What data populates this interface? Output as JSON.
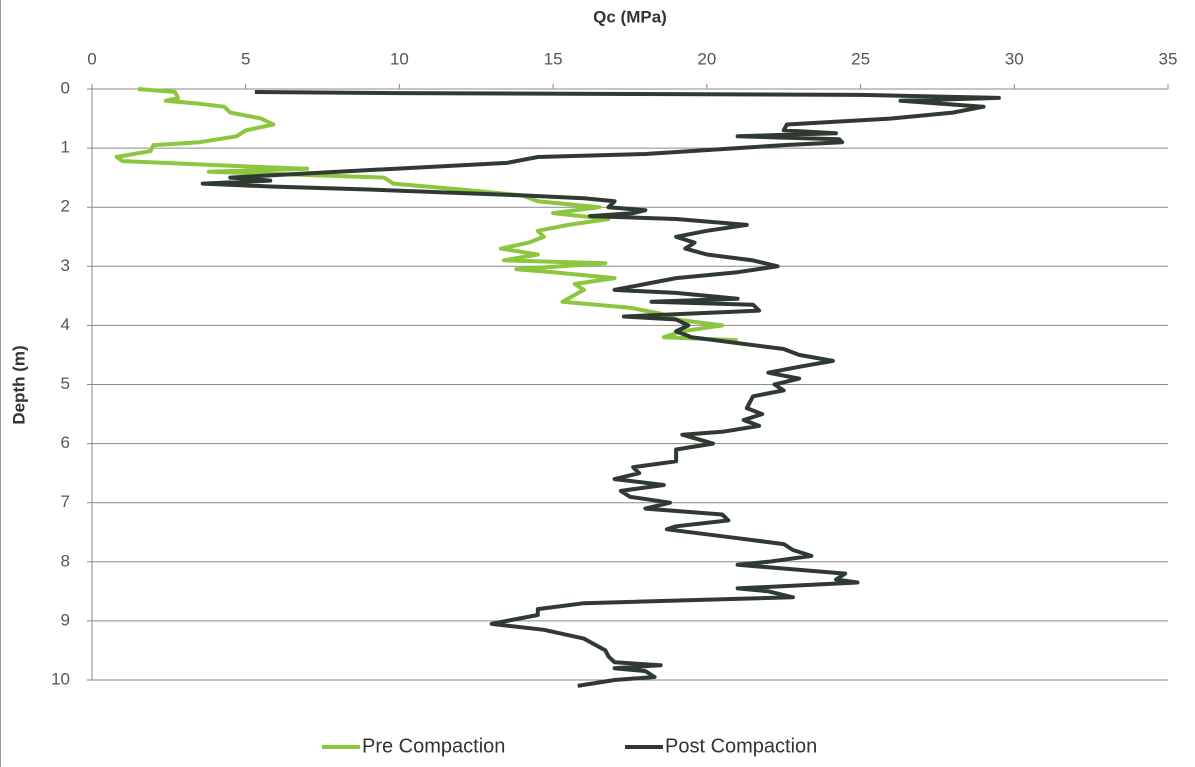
{
  "chart_data": {
    "type": "line",
    "xlabel": "Qc (MPa)",
    "ylabel": "Depth (m)",
    "xlim": [
      0,
      35
    ],
    "xticks": [
      0,
      5,
      10,
      15,
      20,
      25,
      30,
      35
    ],
    "ylim": [
      0,
      10
    ],
    "yticks": [
      0,
      1,
      2,
      3,
      4,
      5,
      6,
      7,
      8,
      9,
      10
    ],
    "y_inverted": true,
    "grid": true,
    "legend": "bottom",
    "series": [
      {
        "name": "Pre Compaction",
        "color": "#8cc63e",
        "x": [
          1.5,
          2.7,
          2.8,
          2.4,
          3.5,
          4.3,
          4.5,
          5.5,
          5.9,
          5.0,
          4.7,
          3.5,
          2.0,
          1.9,
          0.8,
          1.0,
          4.5,
          7.0,
          3.8,
          9.5,
          9.8,
          12.0,
          14.0,
          14.5,
          16.5,
          15.0,
          16.8,
          15.5,
          14.5,
          14.7,
          14.2,
          13.3,
          14.5,
          13.4,
          16.7,
          13.8,
          15.0,
          17.0,
          15.7,
          16.0,
          15.3,
          17.5,
          18.5,
          19.0,
          20.5,
          19.2,
          18.6,
          21.0
        ],
        "y": [
          0,
          0.05,
          0.15,
          0.2,
          0.25,
          0.3,
          0.4,
          0.5,
          0.6,
          0.7,
          0.8,
          0.9,
          0.95,
          1.05,
          1.15,
          1.22,
          1.3,
          1.35,
          1.4,
          1.5,
          1.6,
          1.7,
          1.8,
          1.9,
          2.0,
          2.1,
          2.2,
          2.3,
          2.4,
          2.5,
          2.6,
          2.7,
          2.8,
          2.9,
          2.95,
          3.05,
          3.1,
          3.2,
          3.3,
          3.4,
          3.6,
          3.7,
          3.8,
          3.9,
          4.0,
          4.1,
          4.2,
          4.25
        ]
      },
      {
        "name": "Post Compaction",
        "color": "#2f3a33",
        "x": [
          5.3,
          10,
          25.0,
          29.5,
          26.3,
          29.0,
          28.0,
          26.0,
          22.6,
          22.5,
          24.2,
          21.0,
          24.3,
          24.4,
          22.5,
          21.0,
          18.0,
          14.5,
          13.5,
          8.0,
          4.5,
          5.8,
          3.6,
          5.8,
          9.0,
          14.0,
          16.0,
          17.0,
          16.8,
          18.0,
          17.6,
          16.2,
          19.0,
          21.3,
          20.0,
          19.0,
          19.6,
          19.3,
          20.0,
          21.5,
          22.3,
          21.0,
          19.0,
          18.0,
          17.0,
          19.0,
          21.0,
          18.2,
          21.5,
          21.7,
          17.3,
          19.0,
          19.4,
          19.0,
          19.5,
          21.0,
          22.5,
          23.0,
          24.1,
          23.0,
          22.0,
          23.0,
          22.2,
          22.5,
          21.5,
          21.3,
          21.8,
          21.2,
          21.7,
          20.5,
          19.2,
          20.2,
          19.0,
          19.0,
          17.6,
          17.8,
          17.0,
          18.6,
          17.2,
          17.5,
          18.8,
          18.0,
          20.5,
          20.7,
          19.0,
          18.7,
          21.0,
          22.5,
          22.8,
          23.4,
          22.0,
          21.0,
          24.5,
          24.2,
          24.9,
          21.0,
          22.0,
          22.8,
          16.0,
          14.5,
          14.5,
          13.5,
          13.0,
          14.7,
          16.0,
          16.7,
          16.8,
          17.0,
          18.5,
          17.0,
          18.0,
          18.3,
          17.0,
          15.8
        ],
        "y": [
          0.05,
          0.07,
          0.1,
          0.15,
          0.2,
          0.3,
          0.4,
          0.5,
          0.6,
          0.7,
          0.75,
          0.8,
          0.85,
          0.9,
          0.95,
          1.0,
          1.1,
          1.15,
          1.25,
          1.4,
          1.5,
          1.55,
          1.6,
          1.65,
          1.7,
          1.8,
          1.85,
          1.9,
          2.0,
          2.05,
          2.1,
          2.15,
          2.2,
          2.3,
          2.4,
          2.5,
          2.6,
          2.7,
          2.8,
          2.9,
          3.0,
          3.1,
          3.2,
          3.3,
          3.4,
          3.45,
          3.55,
          3.6,
          3.65,
          3.75,
          3.85,
          3.9,
          4.0,
          4.1,
          4.2,
          4.3,
          4.4,
          4.5,
          4.6,
          4.7,
          4.8,
          4.9,
          5.0,
          5.1,
          5.2,
          5.4,
          5.5,
          5.6,
          5.7,
          5.8,
          5.85,
          6.0,
          6.1,
          6.3,
          6.4,
          6.5,
          6.6,
          6.7,
          6.8,
          6.9,
          7.0,
          7.1,
          7.2,
          7.3,
          7.4,
          7.45,
          7.6,
          7.7,
          7.8,
          7.9,
          8.0,
          8.05,
          8.2,
          8.3,
          8.35,
          8.45,
          8.5,
          8.6,
          8.7,
          8.8,
          8.9,
          9.0,
          9.05,
          9.15,
          9.3,
          9.5,
          9.6,
          9.7,
          9.75,
          9.8,
          9.85,
          9.95,
          10.0,
          10.1
        ]
      }
    ]
  }
}
